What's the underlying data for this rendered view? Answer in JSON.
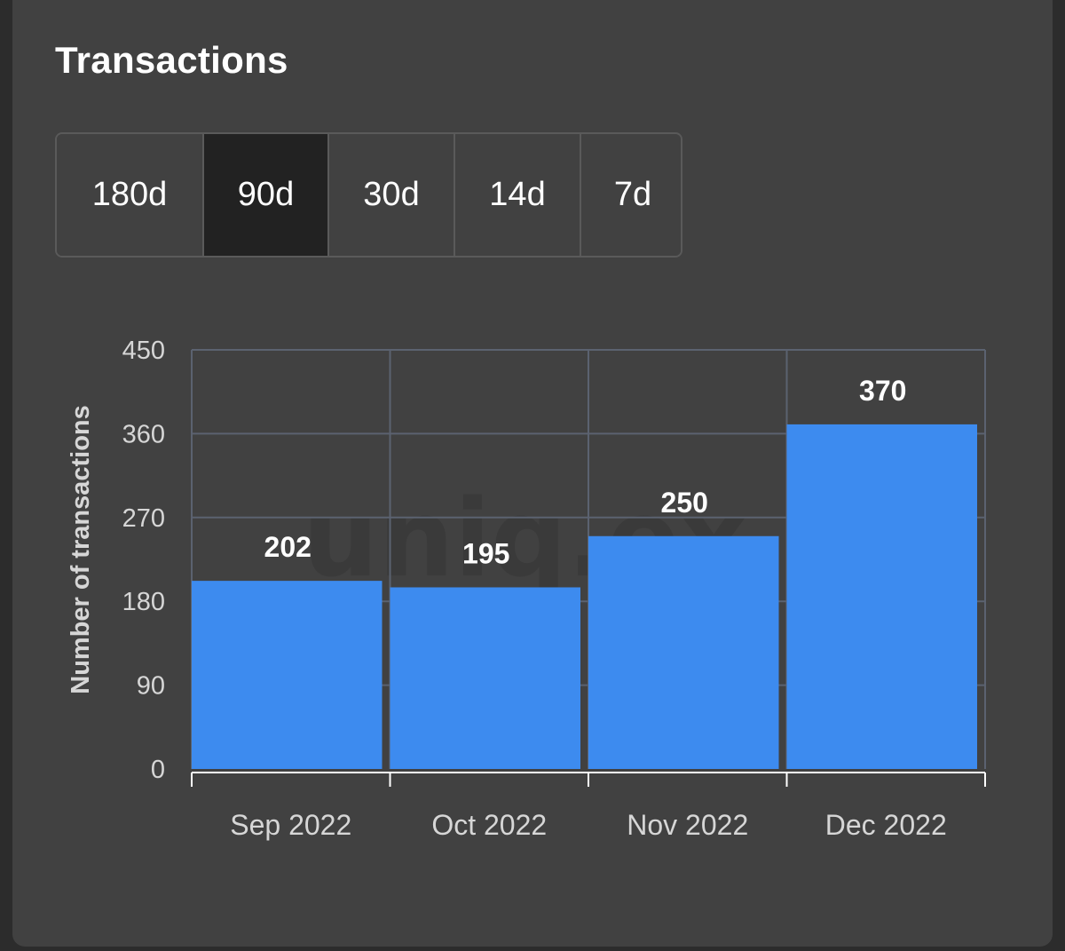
{
  "header": {
    "title": "Transactions"
  },
  "range_selector": {
    "options": [
      {
        "label": "180d",
        "key": "180d"
      },
      {
        "label": "90d",
        "key": "90d"
      },
      {
        "label": "30d",
        "key": "30d"
      },
      {
        "label": "14d",
        "key": "14d"
      },
      {
        "label": "7d",
        "key": "7d"
      }
    ],
    "selected": "90d"
  },
  "watermark": "uniq.ex",
  "colors": {
    "bar": "#3d8bef",
    "grid": "#5b6270",
    "axis_text": "#d6d6d6",
    "label_text": "#ffffff",
    "button_active_bg": "#222222"
  },
  "chart_data": {
    "type": "bar",
    "categories": [
      "Sep 2022",
      "Oct 2022",
      "Nov 2022",
      "Dec 2022"
    ],
    "values": [
      202,
      195,
      250,
      370
    ],
    "ylabel": "Number of transactions",
    "xlabel": "",
    "ylim": [
      0,
      450
    ],
    "yticks": [
      0,
      90,
      180,
      270,
      360,
      450
    ],
    "grid": true,
    "data_labels": true
  }
}
